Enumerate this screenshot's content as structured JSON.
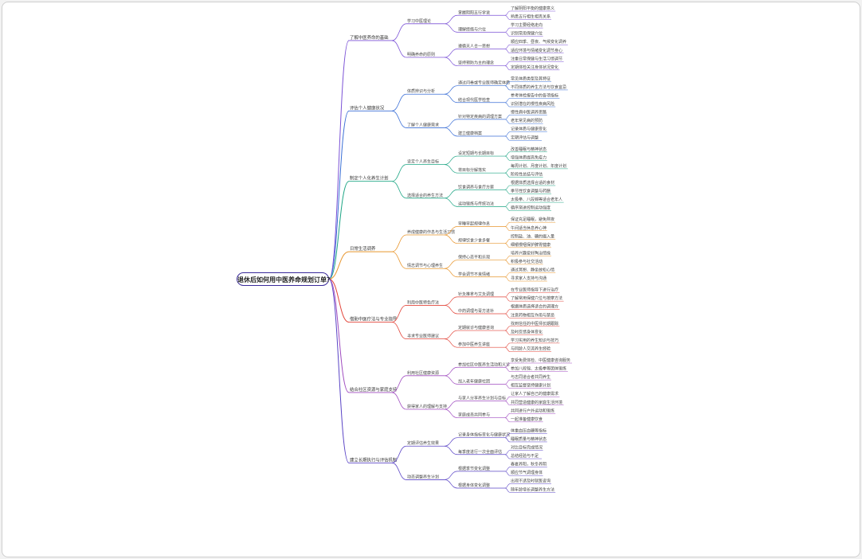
{
  "root": "退休后如何用中医养命规划订单？",
  "colors": [
    "#7b52d6",
    "#3b6fd6",
    "#1da584",
    "#e8962e",
    "#e2453a",
    "#a04cc0",
    "#5a44c6"
  ],
  "branches": [
    {
      "label": "了解中医养命的基础",
      "children": [
        {
          "label": "学习中医理论",
          "children": [
            {
              "label": "掌握阴阳五行学说",
              "children": [
                "了解阴阳平衡的健康意义",
                "熟悉五行相生相克关系"
              ]
            },
            {
              "label": "理解经络与穴位",
              "children": [
                "学习主要经络走向",
                "识别常用保健穴位"
              ]
            }
          ]
        },
        {
          "label": "明确养命的原则",
          "children": [
            {
              "label": "遵循天人合一思想",
              "children": [
                "顺应四季、昼夜、气候变化调养",
                "适应环境与情绪变化调节身心"
              ]
            },
            {
              "label": "坚持预防为主的理念",
              "children": [
                "注重日常保健与生活习惯调节",
                "定期体检关注身体状况变化"
              ]
            }
          ]
        }
      ]
    },
    {
      "label": "评估个人健康状况",
      "children": [
        {
          "label": "体质辨识与分析",
          "children": [
            {
              "label": "通过问卷或专业医师确定体质",
              "children": [
                "常见体质类型及其特征",
                "不同体质的养生方法与饮食宜忌"
              ]
            },
            {
              "label": "结合现代医学检查",
              "children": [
                "参考体检报告中的各项指标",
                "识别潜在的慢性疾病风险"
              ]
            }
          ]
        },
        {
          "label": "了解个人健康需求",
          "children": [
            {
              "label": "针对特定疾病的调理方案",
              "children": [
                "慢性病中医调养思路",
                "老年常见病的预防"
              ]
            },
            {
              "label": "建立健康档案",
              "children": [
                "记录体质与健康变化",
                "定期评估与调整"
              ]
            }
          ]
        }
      ]
    },
    {
      "label": "制定个人化养生计划",
      "children": [
        {
          "label": "设定个人养生目标",
          "children": [
            {
              "label": "设定短期与长期目标",
              "children": [
                "改善睡眠与精神状态",
                "增强体质提高免疫力"
              ]
            },
            {
              "label": "将目标分解落实",
              "children": [
                "每周计划、月度计划、年度计划",
                "阶段性总结与评估"
              ]
            }
          ]
        },
        {
          "label": "选择适合的养生方法",
          "children": [
            {
              "label": "饮食调养与食疗方案",
              "children": [
                "根据体质选择合适的食材",
                "季节性饮食调整与药膳"
              ]
            },
            {
              "label": "运动锻炼与传统功法",
              "children": [
                "太极拳、八段锦等适合老年人",
                "循序渐进控制运动强度"
              ]
            }
          ]
        }
      ]
    },
    {
      "label": "日常生活调养",
      "children": [
        {
          "label": "养成健康的作息与生活习惯",
          "children": [
            {
              "label": "早睡早起规律作息",
              "children": [
                "保证充足睡眠，避免熬夜",
                "午间适当休息养心神"
              ]
            },
            {
              "label": "规律饮食少食多餐",
              "children": [
                "控制盐、油、糖的摄入量",
                "细嚼慢咽保护脾胃健康"
              ]
            }
          ]
        },
        {
          "label": "情志调节与心理养生",
          "children": [
            {
              "label": "保持心态平和乐观",
              "children": [
                "培养兴趣爱好陶冶情操",
                "积极参与社交活动"
              ]
            },
            {
              "label": "学会调节不良情绪",
              "children": [
                "通过冥想、静坐放松心情",
                "寻求家人支持与沟通"
              ]
            }
          ]
        }
      ]
    },
    {
      "label": "借助中医疗法与专业指导",
      "children": [
        {
          "label": "利用中医特色疗法",
          "children": [
            {
              "label": "针灸推拿与艾灸调理",
              "children": [
                "在专业医师指导下进行治疗",
                "了解常用保健穴位与按摩方法"
              ]
            },
            {
              "label": "中药调理与膏方进补",
              "children": [
                "根据体质选择适合的调理方",
                "注意药物相互作用与禁忌"
              ]
            }
          ]
        },
        {
          "label": "寻求专业医师建议",
          "children": [
            {
              "label": "定期就诊与健康咨询",
              "children": [
                "找到信任的中医师长期跟踪",
                "及时反馈身体变化"
              ]
            },
            {
              "label": "参加中医养生讲座",
              "children": [
                "学习实用的养生知识与技巧",
                "与同龄人交流养生经验"
              ]
            }
          ]
        }
      ]
    },
    {
      "label": "结合社区资源与家庭支持",
      "children": [
        {
          "label": "利用社区健康资源",
          "children": [
            {
              "label": "参加社区中医养生活动和义诊",
              "children": [
                "享受免费体检、中医健康咨询服务",
                "参加八段锦、太极拳等团体锻炼"
              ]
            },
            {
              "label": "加入老年健康社团",
              "children": [
                "与志同道合者共同养生",
                "相互监督坚持健康计划"
              ]
            }
          ]
        },
        {
          "label": "获得家人的理解与支持",
          "children": [
            {
              "label": "与家人分享养生计划与目标",
              "children": [
                "让家人了解自己的健康需求",
                "共同营造健康的家庭生活环境"
              ]
            },
            {
              "label": "家庭成员共同参与",
              "children": [
                "共同进行户外运动和锻炼",
                "一起准备健康饮食"
              ]
            }
          ]
        }
      ]
    },
    {
      "label": "建立长期执行与评估机制",
      "children": [
        {
          "label": "定期评估养生效果",
          "children": [
            {
              "label": "记录身体指标变化与健康状况",
              "children": [
                "体重血压血糖等指标",
                "睡眠质量与精神状态"
              ]
            },
            {
              "label": "每季度进行一次全面评估",
              "children": [
                "对比目标完成情况",
                "总结经验与不足"
              ]
            }
          ]
        },
        {
          "label": "动态调整养生计划",
          "children": [
            {
              "label": "根据季节变化调整",
              "children": [
                "春夏养阳，秋冬养阴",
                "顺应节气调理身体"
              ]
            },
            {
              "label": "根据身体变化调整",
              "children": [
                "出现不适及时就医咨询",
                "随年龄增长调整养生方法"
              ]
            }
          ]
        }
      ]
    }
  ]
}
